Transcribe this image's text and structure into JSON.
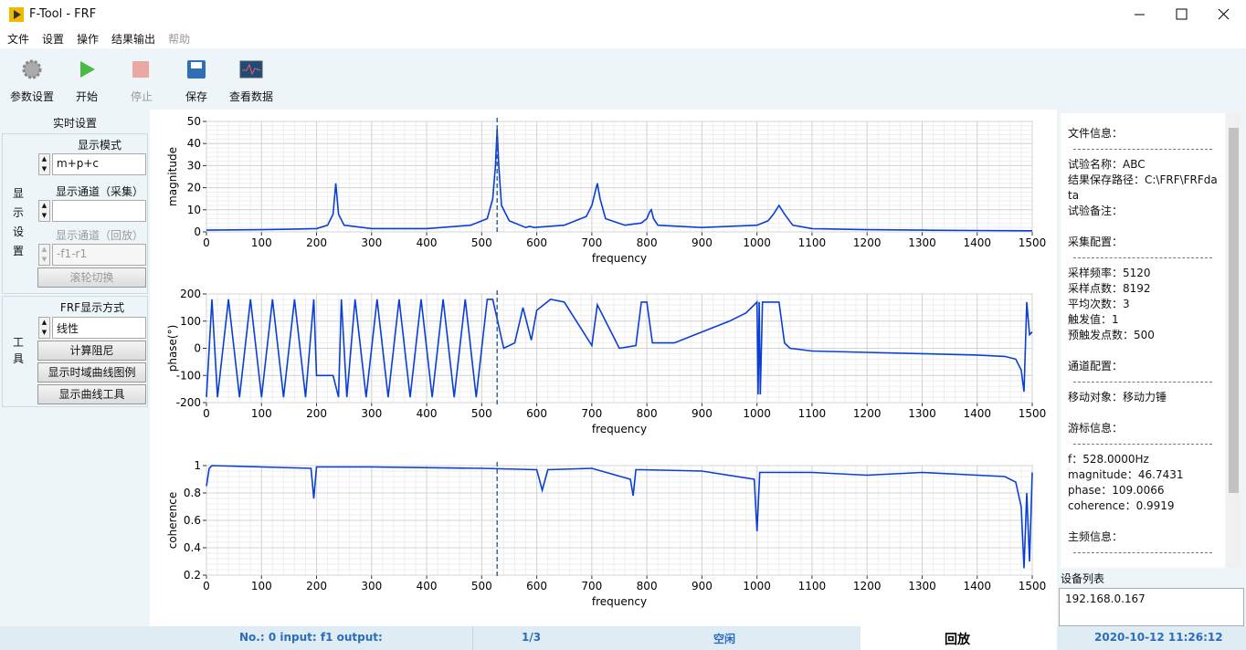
{
  "window": {
    "title": "F-Tool - FRF"
  },
  "menu": [
    "文件",
    "设置",
    "操作",
    "结果输出",
    "帮助"
  ],
  "toolbar": [
    "参数设置",
    "开始",
    "停止",
    "保存",
    "查看数据"
  ],
  "left_panel": {
    "title": "实时设置",
    "display_group": "显示设置",
    "mode_label": "显示模式",
    "mode_value": "m+p+c",
    "channel_label": "显示通道（采集）",
    "replay_label": "显示通道（回放）",
    "replay_value": "-f1-r1",
    "wheel_button": "滚轮切换",
    "tools_group": "工具",
    "frf_label": "FRF显示方式",
    "frf_value": "线性",
    "buttons": [
      "计算阻尼",
      "显示时域曲线图例",
      "显示曲线工具"
    ]
  },
  "chart_data": [
    {
      "type": "line",
      "ylabel": "magnitude",
      "xlabel": "frequency",
      "color": "#0a3fd6",
      "grid": true,
      "cursor_x": 528,
      "x": [
        0,
        50,
        100,
        150,
        200,
        220,
        230,
        235,
        240,
        250,
        300,
        400,
        480,
        510,
        520,
        525,
        528,
        531,
        536,
        550,
        580,
        587,
        595,
        650,
        690,
        700,
        706,
        710,
        715,
        725,
        760,
        790,
        800,
        805,
        808,
        812,
        820,
        900,
        1000,
        1020,
        1030,
        1040,
        1050,
        1065,
        1100,
        1200,
        1300,
        1400,
        1500
      ],
      "values": [
        0.8,
        0.9,
        1,
        1.2,
        1.5,
        3,
        8,
        22,
        8,
        3,
        1.5,
        1.5,
        3,
        6,
        15,
        30,
        46.7,
        30,
        12,
        5,
        2,
        2.5,
        2,
        3,
        7,
        12,
        18,
        22,
        15,
        6,
        3,
        4,
        6,
        9,
        10,
        6,
        3,
        2,
        3,
        5,
        8,
        12,
        8,
        3,
        1.5,
        1,
        0.8,
        0.6,
        0.5
      ],
      "xlim": [
        0,
        1500
      ],
      "xticks": [
        0,
        100,
        200,
        300,
        400,
        500,
        600,
        700,
        800,
        900,
        1000,
        1100,
        1200,
        1300,
        1400,
        1500
      ],
      "ylim": [
        0,
        50
      ],
      "yticks": [
        0,
        10,
        20,
        30,
        40,
        50
      ]
    },
    {
      "type": "line",
      "ylabel": "phase(°)",
      "xlabel": "frequency",
      "color": "#0a3fd6",
      "grid": true,
      "cursor_x": 528,
      "x": [
        0,
        10,
        20,
        40,
        60,
        80,
        100,
        120,
        140,
        160,
        180,
        195,
        200,
        230,
        240,
        245,
        255,
        270,
        290,
        310,
        330,
        350,
        370,
        390,
        410,
        430,
        450,
        470,
        490,
        510,
        520,
        528,
        540,
        560,
        575,
        590,
        600,
        625,
        650,
        700,
        710,
        750,
        780,
        790,
        800,
        810,
        850,
        900,
        950,
        980,
        1000,
        1002,
        1004,
        1006,
        1010,
        1040,
        1050,
        1060,
        1100,
        1200,
        1300,
        1400,
        1450,
        1470,
        1480,
        1485,
        1490,
        1495,
        1500
      ],
      "values": [
        -180,
        180,
        -180,
        180,
        -180,
        180,
        -180,
        180,
        -180,
        180,
        -180,
        180,
        -100,
        -100,
        -180,
        180,
        -180,
        180,
        -180,
        180,
        -180,
        180,
        -180,
        180,
        -180,
        180,
        -180,
        180,
        -180,
        180,
        180,
        109,
        0,
        20,
        150,
        30,
        140,
        180,
        170,
        10,
        160,
        0,
        10,
        170,
        170,
        20,
        20,
        60,
        100,
        130,
        170,
        -170,
        170,
        -170,
        170,
        170,
        20,
        0,
        -10,
        -15,
        -20,
        -25,
        -30,
        -40,
        -80,
        -160,
        170,
        50,
        60
      ],
      "xlim": [
        0,
        1500
      ],
      "xticks": [
        0,
        100,
        200,
        300,
        400,
        500,
        600,
        700,
        800,
        900,
        1000,
        1100,
        1200,
        1300,
        1400,
        1500
      ],
      "ylim": [
        -200,
        200
      ],
      "yticks": [
        -200,
        -100,
        0,
        100,
        200
      ]
    },
    {
      "type": "line",
      "ylabel": "coherence",
      "xlabel": "frequency",
      "color": "#0a3fd6",
      "grid": true,
      "cursor_x": 528,
      "x": [
        0,
        5,
        10,
        100,
        190,
        195,
        200,
        300,
        500,
        600,
        610,
        620,
        700,
        770,
        775,
        780,
        790,
        900,
        995,
        1000,
        1005,
        1100,
        1200,
        1300,
        1400,
        1450,
        1470,
        1480,
        1485,
        1490,
        1495,
        1500
      ],
      "values": [
        0.85,
        0.98,
        1,
        0.99,
        0.98,
        0.76,
        0.99,
        0.99,
        0.98,
        0.97,
        0.82,
        0.97,
        0.98,
        0.9,
        0.78,
        0.97,
        0.97,
        0.96,
        0.9,
        0.52,
        0.95,
        0.95,
        0.93,
        0.95,
        0.93,
        0.92,
        0.88,
        0.7,
        0.25,
        0.8,
        0.3,
        0.95
      ],
      "xlim": [
        0,
        1500
      ],
      "xticks": [
        0,
        100,
        200,
        300,
        400,
        500,
        600,
        700,
        800,
        900,
        1000,
        1100,
        1200,
        1300,
        1400,
        1500
      ],
      "ylim": [
        0.2,
        1
      ],
      "yticks": [
        0.2,
        0.4,
        0.6,
        0.8,
        1
      ]
    }
  ],
  "info_panel": {
    "sections": [
      {
        "heading": "文件信息：",
        "lines": [
          "试验名称：ABC",
          "结果保存路径：C:\\FRF\\FRFdata",
          "试验备注："
        ]
      },
      {
        "heading": "采集配置：",
        "lines": [
          "采样频率：5120",
          "采样点数：8192",
          "平均次数：3",
          "触发值：1",
          "预触发点数：500"
        ]
      },
      {
        "heading": "通道配置：",
        "lines": [
          "移动对象：移动力锤"
        ]
      },
      {
        "heading": "游标信息：",
        "lines": [
          "f：528.0000Hz",
          "magnitude：46.7431",
          "phase：109.0066",
          "coherence：0.9919"
        ]
      },
      {
        "heading": "主频信息：",
        "lines": []
      }
    ]
  },
  "device_list": {
    "title": "设备列表",
    "items": [
      "192.168.0.167"
    ]
  },
  "status_bar": {
    "channel": "No.: 0   input: f1   output:",
    "page": "1/3",
    "state": "空闲",
    "mode": "回放",
    "time": "2020-10-12  11:26:12"
  }
}
